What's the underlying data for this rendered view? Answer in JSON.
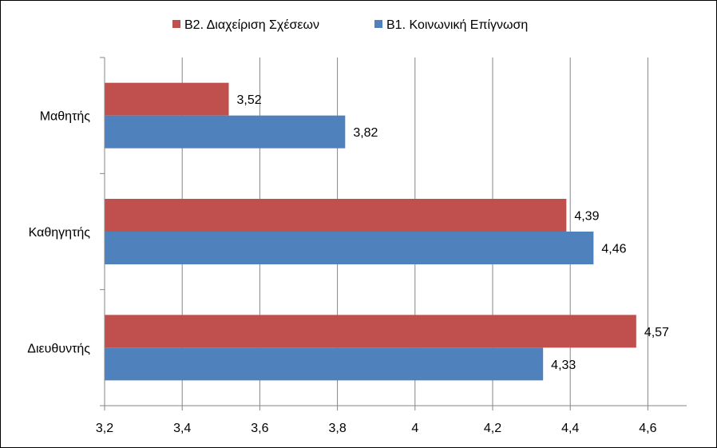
{
  "chart_data": {
    "type": "bar",
    "orientation": "horizontal",
    "title": "",
    "xlabel": "",
    "ylabel": "",
    "categories": [
      "Μαθητής",
      "Καθηγητής",
      "Διευθυντής"
    ],
    "series": [
      {
        "name": "Β2. Διαχείριση Σχέσεων",
        "color": "#C0504D",
        "values": [
          3.52,
          4.39,
          4.57
        ],
        "labels": [
          "3,52",
          "4,39",
          "4,57"
        ]
      },
      {
        "name": "Β1. Κοινωνική Επίγνωση",
        "color": "#4F81BD",
        "values": [
          3.82,
          4.46,
          4.33
        ],
        "labels": [
          "3,82",
          "4,46",
          "4,33"
        ]
      }
    ],
    "xlim": [
      3.2,
      4.7
    ],
    "ticks": [
      3.2,
      3.4,
      3.6,
      3.8,
      4.0,
      4.2,
      4.4,
      4.6
    ],
    "tick_labels": [
      "3,2",
      "3,4",
      "3,6",
      "3,8",
      "4",
      "4,2",
      "4,4",
      "4,6"
    ],
    "grid": true,
    "legend_position": "top"
  }
}
